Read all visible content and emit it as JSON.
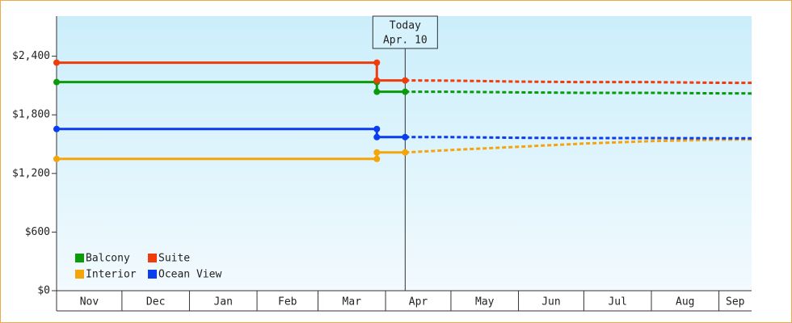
{
  "chart_data": {
    "type": "line",
    "ylim": [
      0,
      2810
    ],
    "yticks": [
      {
        "value": 0,
        "label": "$0"
      },
      {
        "value": 600,
        "label": "$600"
      },
      {
        "value": 1200,
        "label": "$1,200"
      },
      {
        "value": 1800,
        "label": "$1,800"
      },
      {
        "value": 2400,
        "label": "$2,400"
      }
    ],
    "xlim": [
      0,
      319
    ],
    "xticks": [
      {
        "value": 0,
        "label": "Nov"
      },
      {
        "value": 30,
        "label": "Dec"
      },
      {
        "value": 61,
        "label": "Jan"
      },
      {
        "value": 92,
        "label": "Feb"
      },
      {
        "value": 120,
        "label": "Mar"
      },
      {
        "value": 151,
        "label": "Apr"
      },
      {
        "value": 181,
        "label": "May"
      },
      {
        "value": 212,
        "label": "Jun"
      },
      {
        "value": 242,
        "label": "Jul"
      },
      {
        "value": 273,
        "label": "Aug"
      },
      {
        "value": 304,
        "label": "Sep"
      }
    ],
    "today": {
      "x": 160,
      "label": "Today",
      "date": "Apr. 10"
    },
    "series": [
      {
        "name": "Balcony",
        "color": "#0a9a0a",
        "x": [
          0,
          147,
          147,
          160
        ],
        "values": [
          2135,
          2135,
          2036,
          2036
        ],
        "forecast_x": [
          160,
          181,
          212,
          242,
          273,
          304,
          319
        ],
        "forecast": [
          2036,
          2036,
          2030,
          2025,
          2025,
          2020,
          2019
        ]
      },
      {
        "name": "Suite",
        "color": "#f03c0a",
        "x": [
          0,
          147,
          147,
          160
        ],
        "values": [
          2334,
          2334,
          2152,
          2152
        ],
        "forecast_x": [
          160,
          181,
          212,
          242,
          273,
          304,
          319
        ],
        "forecast": [
          2152,
          2150,
          2140,
          2135,
          2135,
          2128,
          2127
        ]
      },
      {
        "name": "Interior",
        "color": "#f5a50a",
        "x": [
          0,
          147,
          147,
          160
        ],
        "values": [
          1349,
          1349,
          1415,
          1415
        ],
        "forecast_x": [
          160,
          181,
          212,
          242,
          273,
          304,
          319
        ],
        "forecast": [
          1415,
          1440,
          1473,
          1506,
          1531,
          1545,
          1548
        ]
      },
      {
        "name": "Ocean View",
        "color": "#0a3cf0",
        "x": [
          0,
          147,
          147,
          160
        ],
        "values": [
          1655,
          1655,
          1572,
          1572
        ],
        "forecast_x": [
          160,
          181,
          212,
          242,
          273,
          304,
          319
        ],
        "forecast": [
          1572,
          1572,
          1565,
          1562,
          1562,
          1560,
          1560
        ]
      }
    ]
  }
}
